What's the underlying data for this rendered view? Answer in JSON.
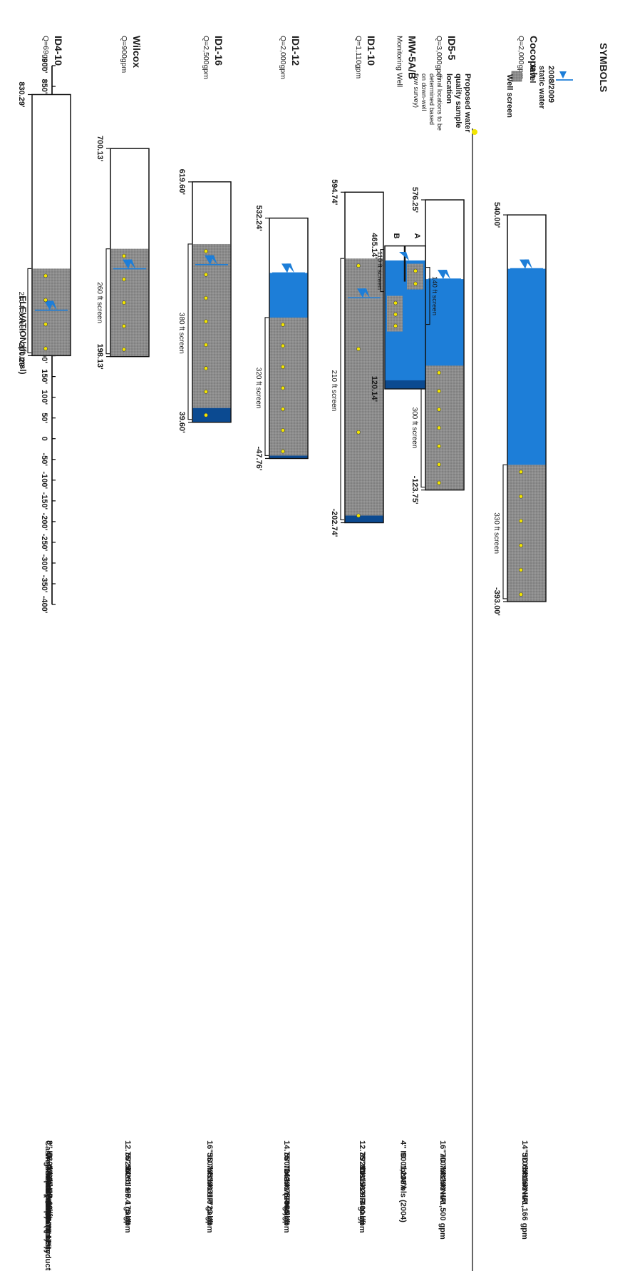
{
  "axis": {
    "label": "ELEVATION (ft msl)",
    "min": -400,
    "max": 900,
    "step": 50,
    "ticks": [
      "900'",
      "850'",
      "800'",
      "750'",
      "700'",
      "650'",
      "600'",
      "550'",
      "500'",
      "450'",
      "400'",
      "350'",
      "300'",
      "250'",
      "200'",
      "150'",
      "100'",
      "50'",
      "0",
      "-50'",
      "-100'",
      "-150'",
      "-200'",
      "-250'",
      "-300'",
      "-350'",
      "-400'"
    ]
  },
  "row_labels": [
    "Casing Inside Diameter (In):",
    "Well Depth (ft bls):",
    "Borehole Depth (ft bls):",
    "Pump Size:",
    "Specific Capacity:",
    "Estimated Production Rate:"
  ],
  "wells": [
    {
      "name": "ID4-10",
      "flow": "Q=69gpm",
      "top": 830.29,
      "bottom": 200.29,
      "top_label": "830.29'",
      "bottom_label": "200.29'",
      "screen_top": 410.29,
      "water": 310,
      "screen_label": "210 ft screen",
      "samples": 4,
      "specs": [
        "8\" ID",
        "630'bls",
        "630'bls",
        "25 HP",
        "20 gal/ft",
        "69 gpm"
      ]
    },
    {
      "name": "Wilcox",
      "flow": "Q=900gpm",
      "top": 700.13,
      "bottom": 198.13,
      "top_label": "700.13'",
      "bottom_label": "198.13'",
      "screen_top": 458.13,
      "water": 410,
      "screen_label": "260 ft screen",
      "samples": 5,
      "specs": [
        "12.75\" ID",
        "502'bls",
        "502'bls",
        "61 HP",
        "26.4 gal/ft",
        "175 gpm"
      ]
    },
    {
      "name": "ID1-16",
      "flow": "Q=2,500gpm",
      "top": 619.6,
      "bottom": 39.6,
      "top_label": "619.60'",
      "bottom_label": "39.60'",
      "screen_top": 469.6,
      "water": 420,
      "screen_label": "380 ft screen",
      "samples": 8,
      "specs": [
        "16\" ID",
        "550'bls",
        "705'bls",
        "300 HP",
        "31.0 gal/ft",
        "723 gpm"
      ]
    },
    {
      "name": "ID1-12",
      "flow": "Q=2,000gpm",
      "top": 532.24,
      "bottom": -47.76,
      "top_label": "532.24'",
      "bottom_label": "-47.76'",
      "screen_top": 292.24,
      "water": 400,
      "screen_label": "320 ft screen",
      "samples": 7,
      "specs": [
        "14.75\" ID",
        "580' bls",
        "726'bls (2004)",
        "200 HP",
        "75.4 gal/ft",
        "965 gpm"
      ]
    },
    {
      "name": "ID1-10",
      "flow": "Q=1,110gpm",
      "top": 594.74,
      "bottom": -202.74,
      "top_label": "594.74'",
      "bottom_label": "-202.74'",
      "screen_top": 434.74,
      "water": 340,
      "screen_label": "210 ft screen",
      "samples": 4,
      "specs": [
        "12.75\" ID",
        "392'bls",
        "816'bls",
        "150 HP",
        "20.3 gal/ft",
        "400 gpm"
      ]
    },
    {
      "name": "ID5-5",
      "flow": "Q=3,000gpm",
      "top": 576.25,
      "bottom": -123.75,
      "top_label": "576.25'",
      "bottom_label": "-123.75'",
      "screen_top": 176.25,
      "water": 385,
      "screen_label": "300 ft screen",
      "samples": 7,
      "specs": [
        "16\" ID",
        "700'bls",
        "708'bls",
        "200 HP",
        "N/A",
        "1,500 gpm"
      ]
    },
    {
      "name": "Cocopah",
      "flow": "Q=2,000gpm",
      "top": 540.0,
      "bottom": -393.0,
      "top_label": "540.00'",
      "bottom_label": "-393.00'",
      "screen_top": -63.0,
      "water": 410,
      "screen_label": "330 ft screen",
      "samples": 6,
      "specs": [
        "14\" ID",
        "570'bls",
        "699'bls",
        "160 HP",
        "N/A",
        "1,166 gpm"
      ]
    }
  ],
  "monitoring_well": {
    "name": "MW-5A/B",
    "subtitle": "Monitoring Well",
    "top": 465.14,
    "bottom": 120.14,
    "top_label": "465.14'",
    "bottom_label": "120.14'",
    "label_a": "A",
    "label_b": "B",
    "screen_a": "110 ft screen",
    "screen_b": "140 ft screen",
    "water": 430,
    "specs": [
      "4\" ID",
      "900'bls",
      "1,238'bls (2004)",
      "N/A"
    ]
  },
  "legend": {
    "title": "SYMBOLS",
    "water_level": [
      "2008/2009",
      "static water",
      "level"
    ],
    "screen": "Well screen",
    "sample": [
      "Proposed water",
      "quality sample",
      "location"
    ],
    "sample_note": [
      "(final locations to be",
      "determined based",
      "on down-well",
      "flow survey)"
    ]
  },
  "colors": {
    "casing": "#ffffff",
    "water": "#1d7ed8",
    "water_dark": "#0b4a91",
    "screen": "#8a8a8a",
    "sample": "#f2e500",
    "note": "#8b1c3a"
  }
}
